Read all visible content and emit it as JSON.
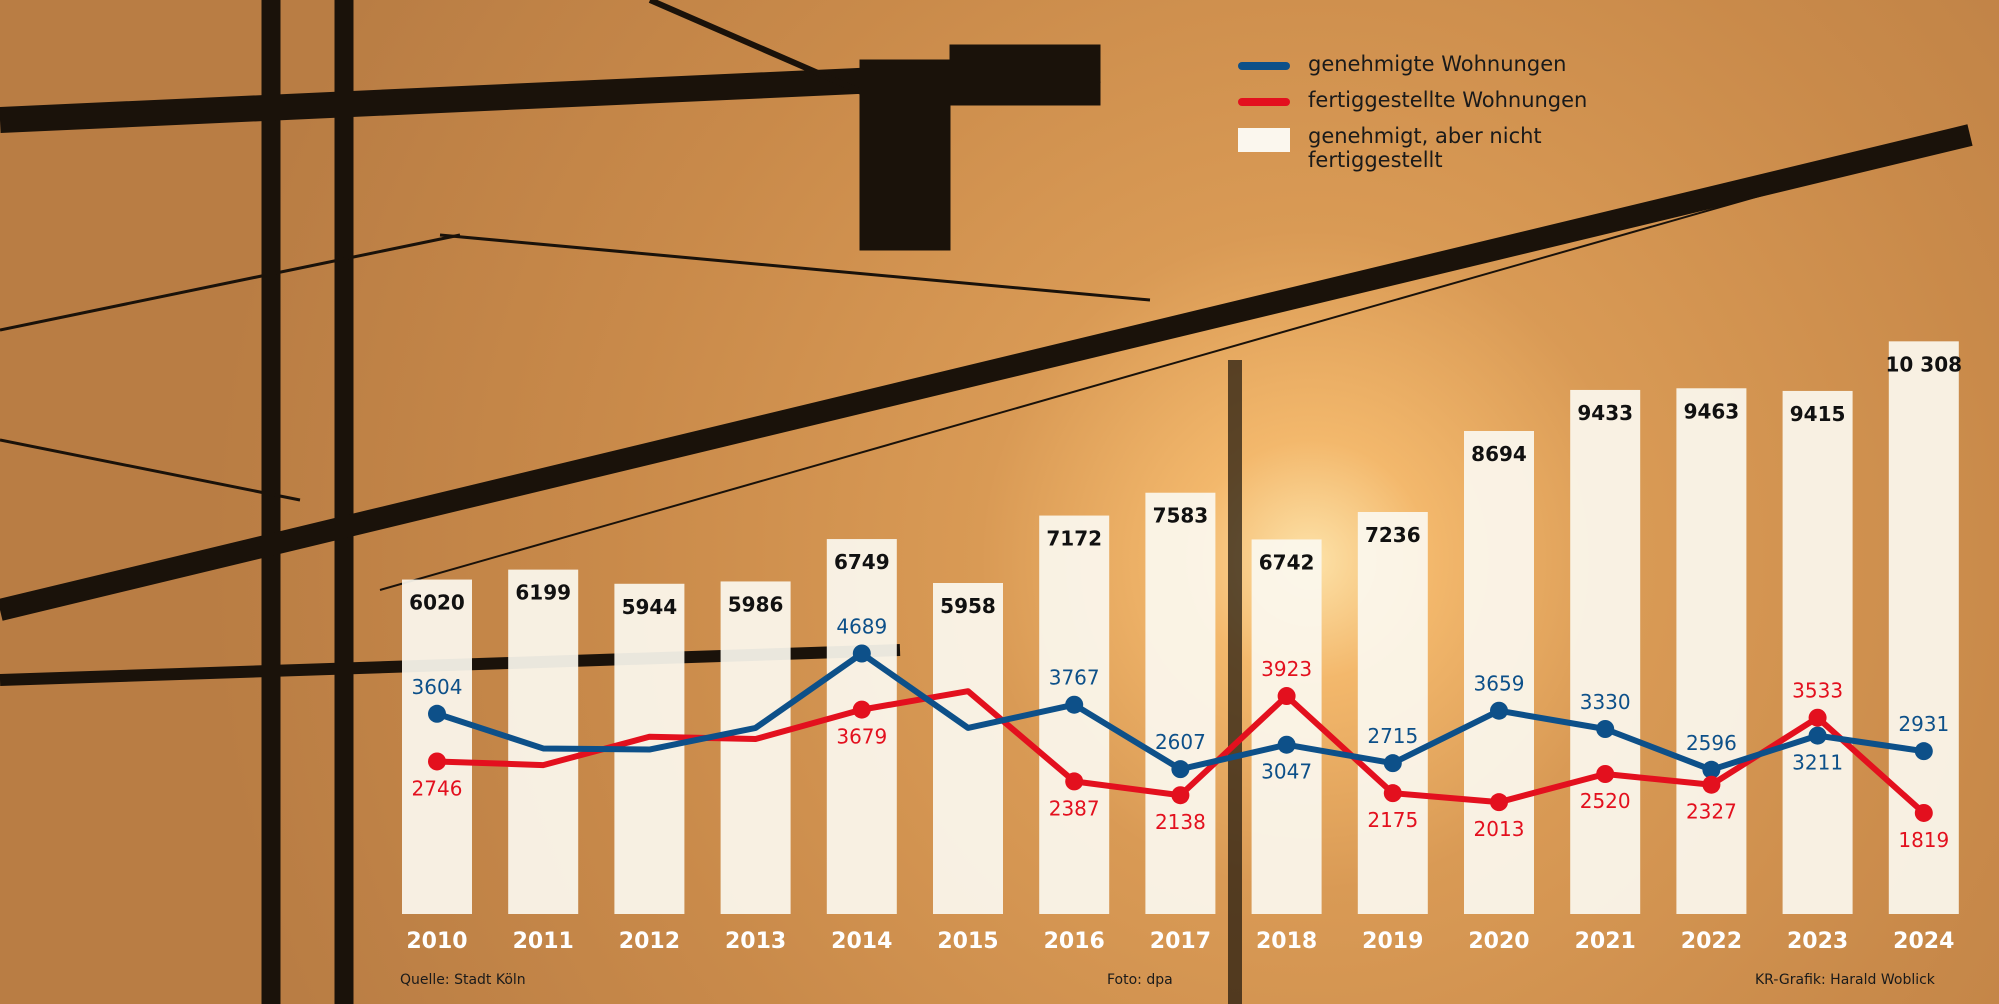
{
  "legend": {
    "approved": "genehmigte Wohnungen",
    "completed": "fertiggestellte Wohnungen",
    "gap": "genehmigt, aber nicht fertiggestellt"
  },
  "footer": {
    "source": "Quelle: Stadt Köln",
    "photo": "Foto: dpa",
    "credit": "KR-Grafik: Harald Woblick"
  },
  "colors": {
    "approved": "#0d5089",
    "completed": "#e3101e",
    "bar": "#fbf7ee"
  },
  "chart_data": {
    "type": "bar",
    "categories": [
      "2010",
      "2011",
      "2012",
      "2013",
      "2014",
      "2015",
      "2016",
      "2017",
      "2018",
      "2019",
      "2020",
      "2021",
      "2022",
      "2023",
      "2024"
    ],
    "series": [
      {
        "name": "genehmigt, aber nicht fertiggestellt",
        "type": "bar",
        "values": [
          6020,
          6199,
          5944,
          5986,
          6749,
          5958,
          7172,
          7583,
          6742,
          7236,
          8694,
          9433,
          9463,
          9415,
          10308
        ],
        "labels": [
          "6020",
          "6199",
          "5944",
          "5986",
          "6749",
          "5958",
          "7172",
          "7583",
          "6742",
          "7236",
          "8694",
          "9433",
          "9463",
          "9415",
          "10 308"
        ]
      },
      {
        "name": "genehmigte Wohnungen",
        "type": "line",
        "values": [
          3604,
          2980,
          2960,
          3350,
          4689,
          3350,
          3767,
          2607,
          3047,
          2715,
          3659,
          3330,
          2596,
          3211,
          2931
        ],
        "labels": [
          "3604",
          null,
          null,
          null,
          "4689",
          null,
          "3767",
          "2607",
          "3047",
          "2715",
          "3659",
          "3330",
          "2596",
          "3211",
          "2931"
        ]
      },
      {
        "name": "fertiggestellte Wohnungen",
        "type": "line",
        "values": [
          2746,
          2680,
          3190,
          3150,
          3679,
          4010,
          2387,
          2138,
          3923,
          2175,
          2013,
          2520,
          2327,
          3533,
          1819
        ],
        "labels": [
          "2746",
          null,
          null,
          null,
          "3679",
          null,
          "2387",
          "2138",
          "3923",
          "2175",
          "2013",
          "2520",
          "2327",
          "3533",
          "1819"
        ]
      }
    ],
    "ylim": [
      0,
      10500
    ],
    "grid": false,
    "legend_position": "top-right"
  }
}
